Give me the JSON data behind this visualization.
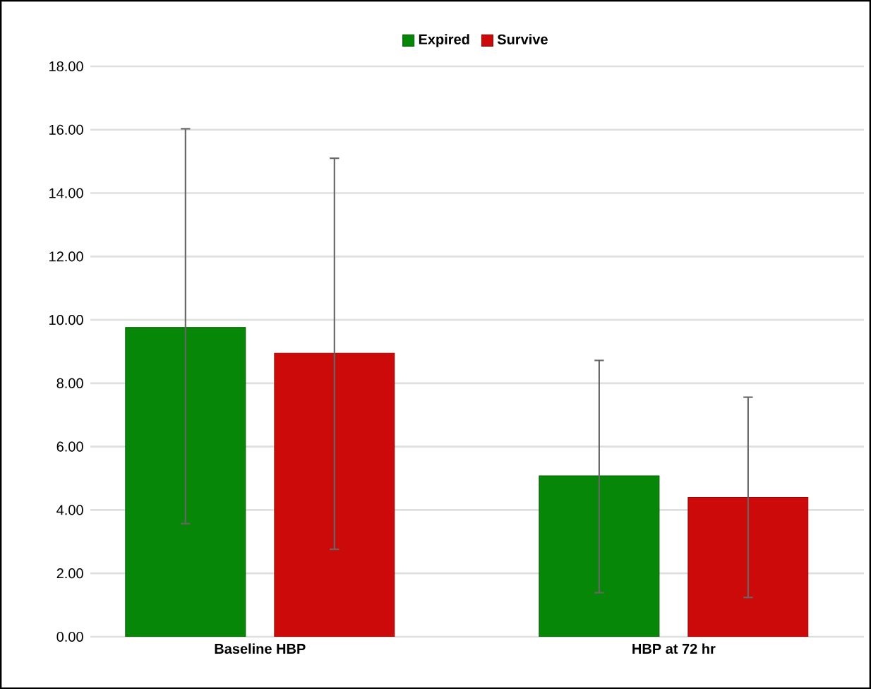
{
  "chart_data": {
    "type": "bar",
    "categories": [
      "Baseline HBP",
      "HBP at 72 hr"
    ],
    "series": [
      {
        "name": "Expired",
        "color": "#078707",
        "values": [
          9.76,
          5.08
        ],
        "errors": [
          [
            3.57,
            16.03
          ],
          [
            1.39,
            8.72
          ]
        ]
      },
      {
        "name": "Survive",
        "color": "#cc0a0a",
        "values": [
          8.95,
          4.4
        ],
        "errors": [
          [
            2.76,
            15.1
          ],
          [
            1.24,
            7.56
          ]
        ]
      }
    ],
    "ylim": [
      0,
      18
    ],
    "yticks": [
      {
        "value": 0,
        "label": "0.00"
      },
      {
        "value": 2,
        "label": "2.00"
      },
      {
        "value": 4,
        "label": "4.00"
      },
      {
        "value": 6,
        "label": "6.00"
      },
      {
        "value": 8,
        "label": "8.00"
      },
      {
        "value": 10,
        "label": "10.00"
      },
      {
        "value": 12,
        "label": "12.00"
      },
      {
        "value": 14,
        "label": "14.00"
      },
      {
        "value": 16,
        "label": "16.00"
      },
      {
        "value": 18,
        "label": "18.00"
      }
    ],
    "grid": "y",
    "legend": "top"
  }
}
